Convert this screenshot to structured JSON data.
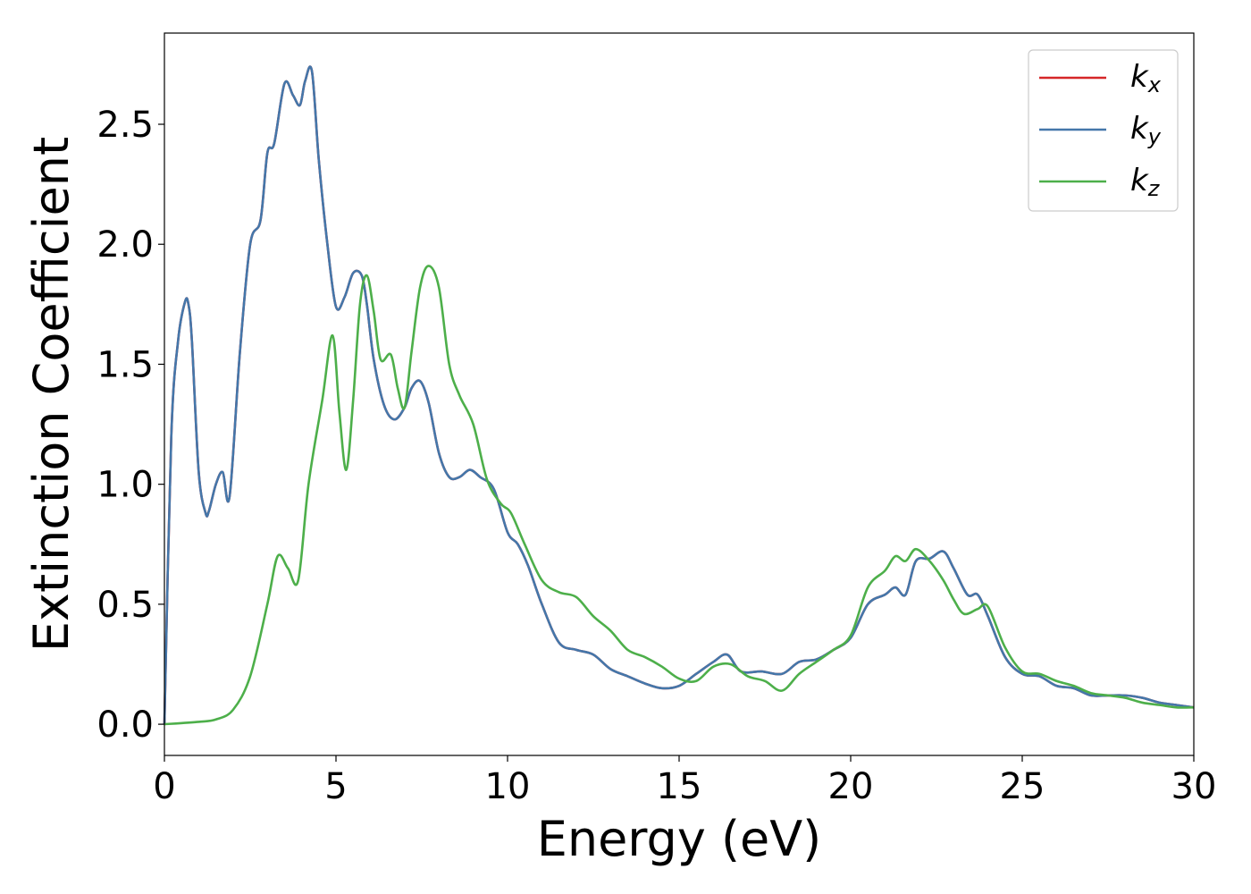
{
  "chart_data": {
    "type": "line",
    "title": "",
    "xlabel": "Energy (eV)",
    "ylabel": "Extinction Coefficient",
    "xlim": [
      0,
      30
    ],
    "ylim": [
      -0.13,
      2.88
    ],
    "xticks": [
      0,
      5,
      10,
      15,
      20,
      25,
      30
    ],
    "xtick_labels": [
      "0",
      "5",
      "10",
      "15",
      "20",
      "25",
      "30"
    ],
    "yticks": [
      0.0,
      0.5,
      1.0,
      1.5,
      2.0,
      2.5
    ],
    "ytick_labels": [
      "0.0",
      "0.5",
      "1.0",
      "1.5",
      "2.0",
      "2.5"
    ],
    "grid": false,
    "legend_position": "top-right",
    "series": [
      {
        "name": "k",
        "subscript": "x",
        "color": "#d62728",
        "x": [
          0,
          0.2,
          0.4,
          0.6,
          0.7,
          0.8,
          1.0,
          1.2,
          1.3,
          1.5,
          1.7,
          1.9,
          2.2,
          2.5,
          2.8,
          3.0,
          3.2,
          3.5,
          3.75,
          3.95,
          4.1,
          4.3,
          4.5,
          4.75,
          5.0,
          5.25,
          5.5,
          5.75,
          5.9,
          6.1,
          6.4,
          6.7,
          7.0,
          7.2,
          7.45,
          7.7,
          8.0,
          8.3,
          8.6,
          8.9,
          9.2,
          9.6,
          10.0,
          10.3,
          10.6,
          11.0,
          11.5,
          12.0,
          12.5,
          13.0,
          13.5,
          14.0,
          14.5,
          15.0,
          15.5,
          16.0,
          16.4,
          16.8,
          17.4,
          18.0,
          18.5,
          19.0,
          19.5,
          20.0,
          20.5,
          21.0,
          21.3,
          21.6,
          21.9,
          22.3,
          22.7,
          23.0,
          23.4,
          23.7,
          24.0,
          24.5,
          25.0,
          25.5,
          26.0,
          26.5,
          27.0,
          27.5,
          28.0,
          28.5,
          29.0,
          29.5,
          30.0
        ],
        "y": [
          0.0,
          1.2,
          1.6,
          1.76,
          1.75,
          1.6,
          1.05,
          0.88,
          0.89,
          1.0,
          1.05,
          0.95,
          1.55,
          2.0,
          2.1,
          2.38,
          2.42,
          2.67,
          2.62,
          2.58,
          2.68,
          2.72,
          2.35,
          2.0,
          1.74,
          1.78,
          1.88,
          1.87,
          1.75,
          1.52,
          1.33,
          1.27,
          1.32,
          1.4,
          1.43,
          1.34,
          1.13,
          1.03,
          1.03,
          1.06,
          1.03,
          0.98,
          0.8,
          0.75,
          0.66,
          0.5,
          0.34,
          0.31,
          0.29,
          0.23,
          0.2,
          0.17,
          0.15,
          0.16,
          0.21,
          0.26,
          0.29,
          0.22,
          0.22,
          0.21,
          0.26,
          0.27,
          0.31,
          0.36,
          0.5,
          0.54,
          0.57,
          0.54,
          0.68,
          0.69,
          0.72,
          0.65,
          0.54,
          0.54,
          0.45,
          0.28,
          0.21,
          0.2,
          0.16,
          0.15,
          0.12,
          0.12,
          0.12,
          0.11,
          0.09,
          0.08,
          0.07
        ]
      },
      {
        "name": "k",
        "subscript": "y",
        "color": "#4477aa",
        "x": [
          0,
          0.2,
          0.4,
          0.6,
          0.7,
          0.8,
          1.0,
          1.2,
          1.3,
          1.5,
          1.7,
          1.9,
          2.2,
          2.5,
          2.8,
          3.0,
          3.2,
          3.5,
          3.75,
          3.95,
          4.1,
          4.3,
          4.5,
          4.75,
          5.0,
          5.25,
          5.5,
          5.75,
          5.9,
          6.1,
          6.4,
          6.7,
          7.0,
          7.2,
          7.45,
          7.7,
          8.0,
          8.3,
          8.6,
          8.9,
          9.2,
          9.6,
          10.0,
          10.3,
          10.6,
          11.0,
          11.5,
          12.0,
          12.5,
          13.0,
          13.5,
          14.0,
          14.5,
          15.0,
          15.5,
          16.0,
          16.4,
          16.8,
          17.4,
          18.0,
          18.5,
          19.0,
          19.5,
          20.0,
          20.5,
          21.0,
          21.3,
          21.6,
          21.9,
          22.3,
          22.7,
          23.0,
          23.4,
          23.7,
          24.0,
          24.5,
          25.0,
          25.5,
          26.0,
          26.5,
          27.0,
          27.5,
          28.0,
          28.5,
          29.0,
          29.5,
          30.0
        ],
        "y": [
          0.0,
          1.2,
          1.6,
          1.76,
          1.75,
          1.6,
          1.05,
          0.88,
          0.89,
          1.0,
          1.05,
          0.95,
          1.55,
          2.0,
          2.1,
          2.38,
          2.42,
          2.67,
          2.62,
          2.58,
          2.68,
          2.72,
          2.35,
          2.0,
          1.74,
          1.78,
          1.88,
          1.87,
          1.75,
          1.52,
          1.33,
          1.27,
          1.32,
          1.4,
          1.43,
          1.34,
          1.13,
          1.03,
          1.03,
          1.06,
          1.03,
          0.98,
          0.8,
          0.75,
          0.66,
          0.5,
          0.34,
          0.31,
          0.29,
          0.23,
          0.2,
          0.17,
          0.15,
          0.16,
          0.21,
          0.26,
          0.29,
          0.22,
          0.22,
          0.21,
          0.26,
          0.27,
          0.31,
          0.36,
          0.5,
          0.54,
          0.57,
          0.54,
          0.68,
          0.69,
          0.72,
          0.65,
          0.54,
          0.54,
          0.45,
          0.28,
          0.21,
          0.2,
          0.16,
          0.15,
          0.12,
          0.12,
          0.12,
          0.11,
          0.09,
          0.08,
          0.07
        ]
      },
      {
        "name": "k",
        "subscript": "z",
        "color": "#4daf4a",
        "x": [
          0,
          1.0,
          1.5,
          2.0,
          2.5,
          3.0,
          3.3,
          3.6,
          3.9,
          4.2,
          4.6,
          4.9,
          5.1,
          5.3,
          5.5,
          5.7,
          5.9,
          6.1,
          6.3,
          6.6,
          6.8,
          7.0,
          7.2,
          7.45,
          7.7,
          8.0,
          8.3,
          8.6,
          9.0,
          9.4,
          9.8,
          10.1,
          10.5,
          11.0,
          11.5,
          12.0,
          12.5,
          13.0,
          13.5,
          14.0,
          14.5,
          15.0,
          15.5,
          16.0,
          16.5,
          17.0,
          17.5,
          18.0,
          18.5,
          19.0,
          19.5,
          20.0,
          20.5,
          21.0,
          21.3,
          21.6,
          21.9,
          22.3,
          22.7,
          23.0,
          23.3,
          23.7,
          24.0,
          24.5,
          25.0,
          25.5,
          26.0,
          26.5,
          27.0,
          27.5,
          28.0,
          28.5,
          29.0,
          29.5,
          30.0
        ],
        "y": [
          0.0,
          0.01,
          0.02,
          0.06,
          0.2,
          0.5,
          0.7,
          0.65,
          0.6,
          1.0,
          1.35,
          1.62,
          1.3,
          1.06,
          1.35,
          1.75,
          1.87,
          1.72,
          1.52,
          1.54,
          1.4,
          1.32,
          1.55,
          1.82,
          1.91,
          1.82,
          1.5,
          1.37,
          1.25,
          1.02,
          0.92,
          0.88,
          0.75,
          0.6,
          0.55,
          0.53,
          0.45,
          0.39,
          0.31,
          0.28,
          0.24,
          0.19,
          0.18,
          0.24,
          0.25,
          0.2,
          0.18,
          0.14,
          0.21,
          0.26,
          0.31,
          0.37,
          0.57,
          0.64,
          0.7,
          0.68,
          0.73,
          0.68,
          0.6,
          0.52,
          0.46,
          0.48,
          0.49,
          0.32,
          0.22,
          0.21,
          0.18,
          0.16,
          0.13,
          0.12,
          0.11,
          0.09,
          0.08,
          0.07,
          0.07
        ]
      }
    ]
  }
}
